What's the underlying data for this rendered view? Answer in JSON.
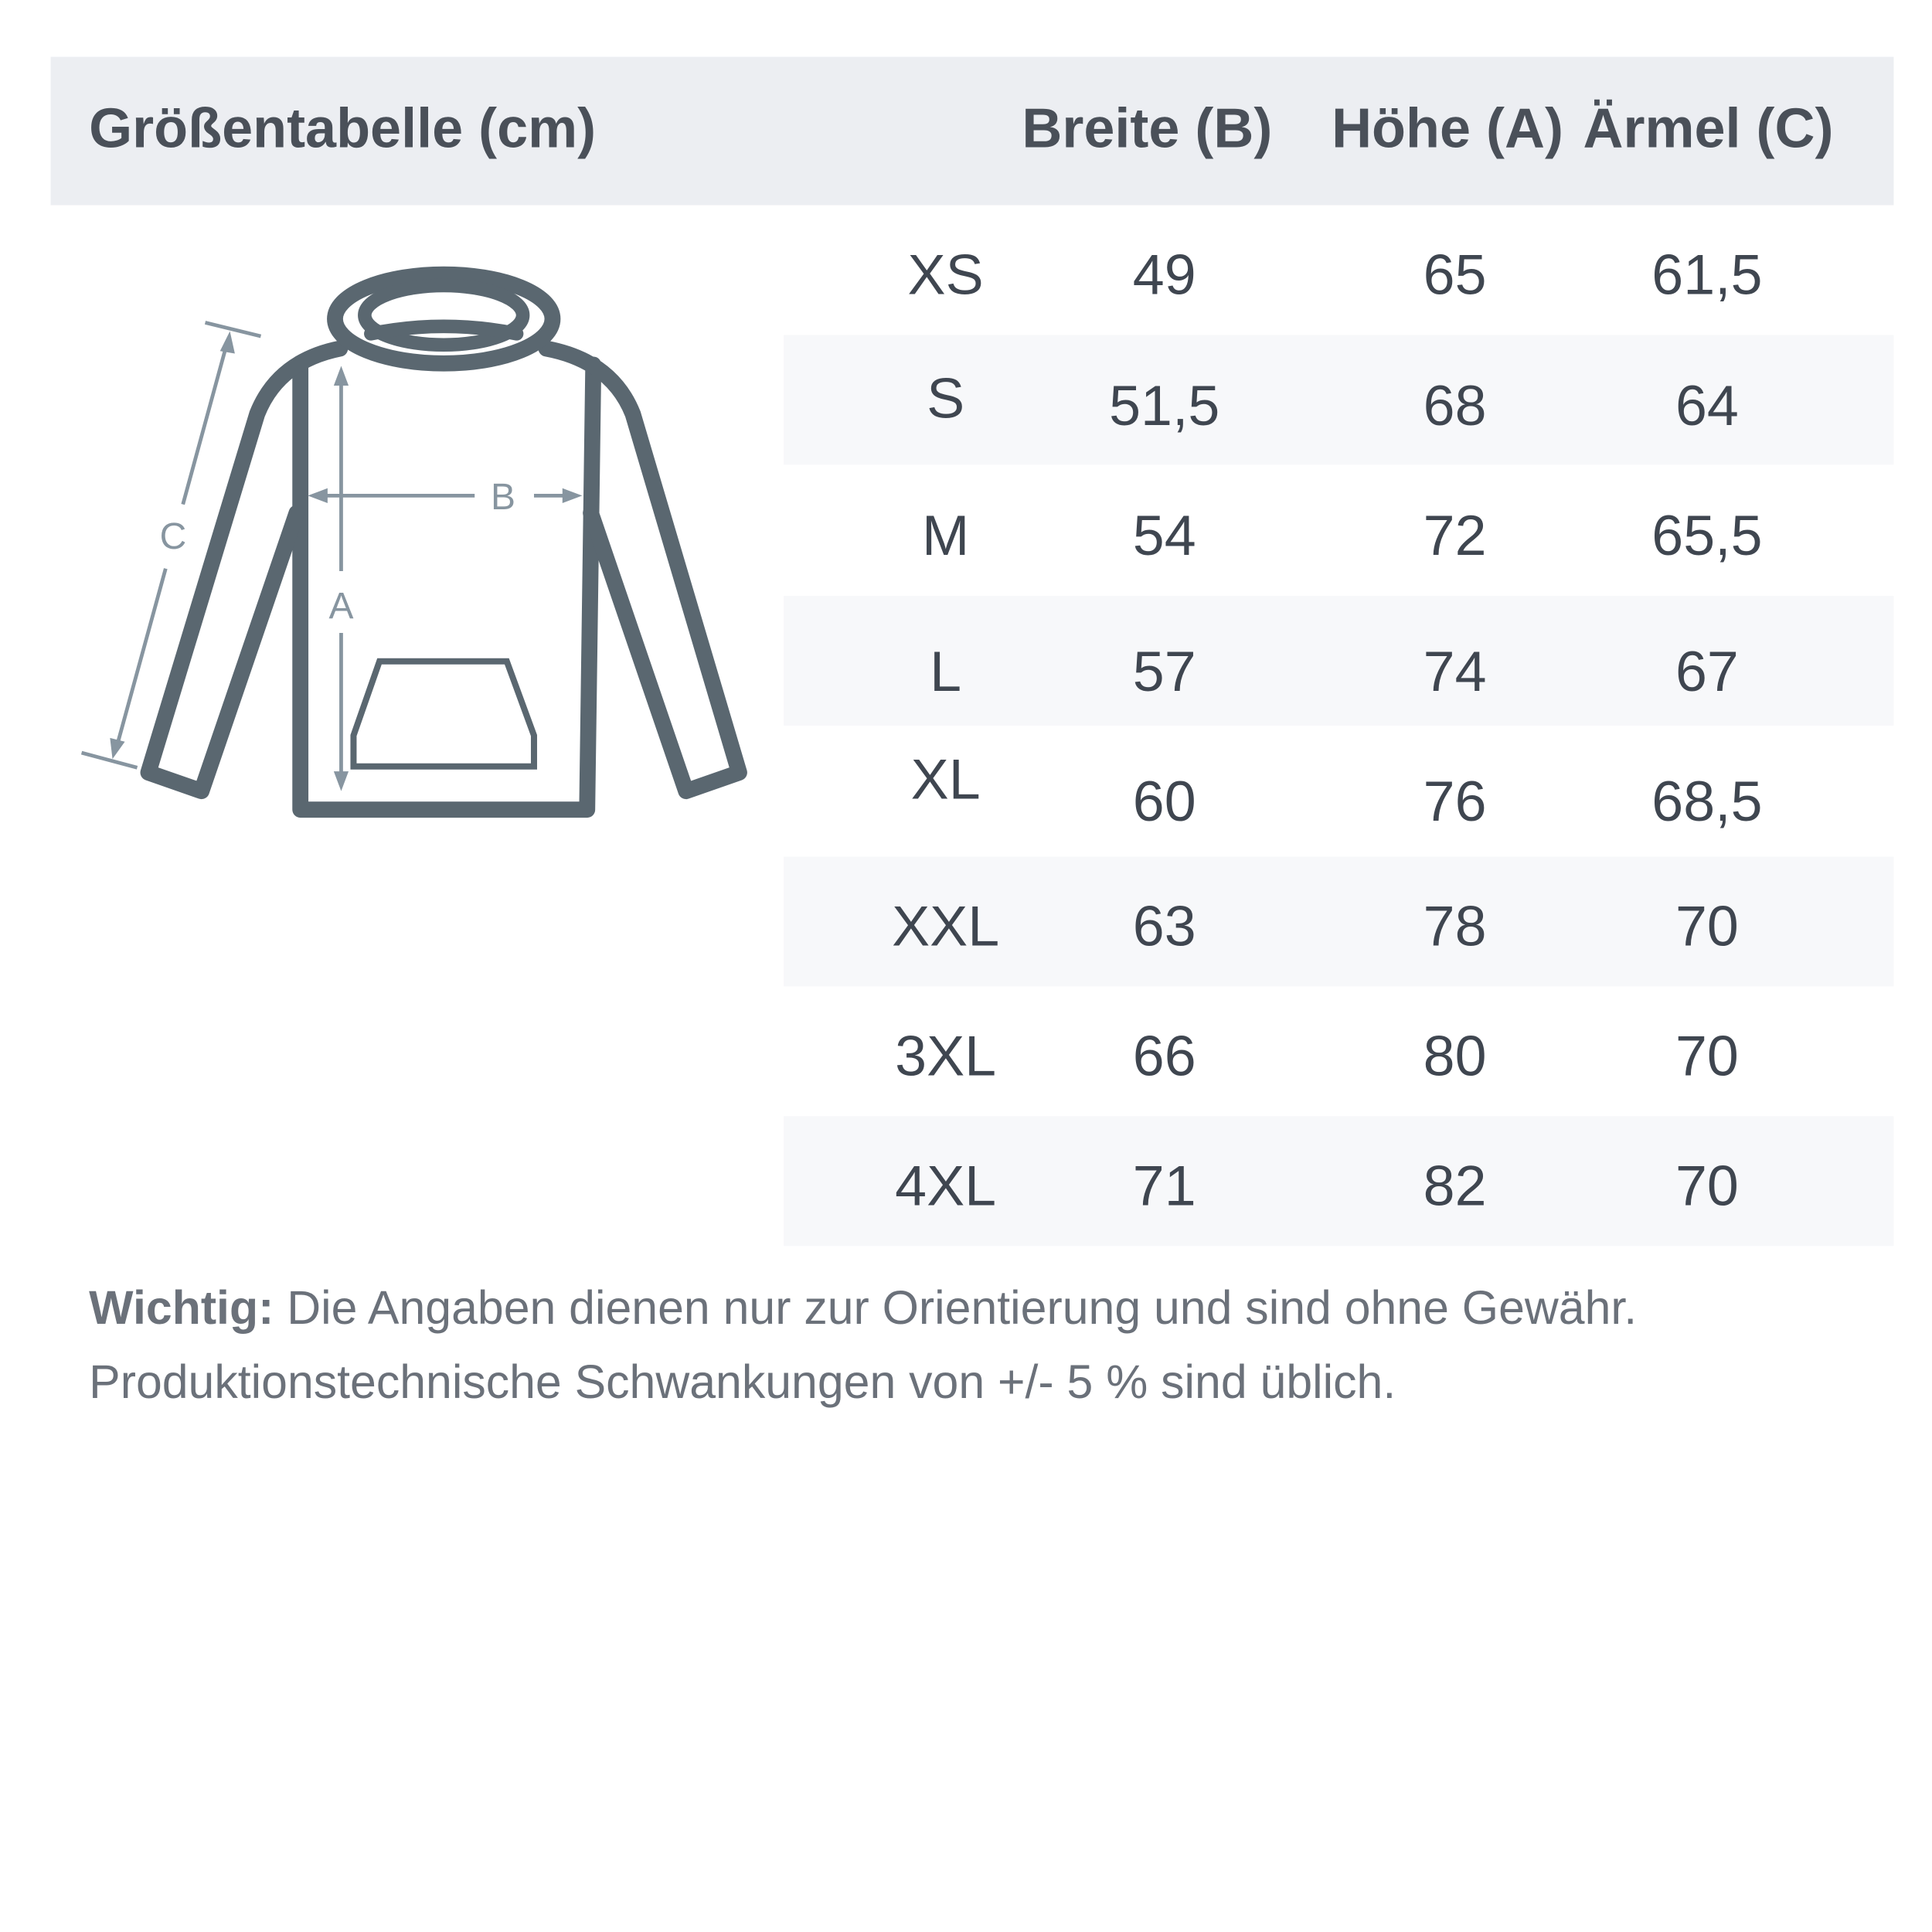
{
  "title": "Größentabelle (cm)",
  "columns": [
    "Breite (B)",
    "Höhe (A)",
    "Ärmel (C)"
  ],
  "rows": [
    {
      "size": "XS",
      "breite": "49",
      "hoehe": "65",
      "aermel": "61,5"
    },
    {
      "size": "S",
      "breite": "51,5",
      "hoehe": "68",
      "aermel": "64"
    },
    {
      "size": "M",
      "breite": "54",
      "hoehe": "72",
      "aermel": "65,5"
    },
    {
      "size": "L",
      "breite": "57",
      "hoehe": "74",
      "aermel": "67"
    },
    {
      "size": "XL",
      "breite": "60",
      "hoehe": "76",
      "aermel": "68,5"
    },
    {
      "size": "XXL",
      "breite": "63",
      "hoehe": "78",
      "aermel": "70"
    },
    {
      "size": "3XL",
      "breite": "66",
      "hoehe": "80",
      "aermel": "70"
    },
    {
      "size": "4XL",
      "breite": "71",
      "hoehe": "82",
      "aermel": "70"
    }
  ],
  "diagram": {
    "labels": {
      "a": "A",
      "b": "B",
      "c": "C"
    },
    "icon": "hoodie-measurement-diagram"
  },
  "note": {
    "bold": "Wichtig:",
    "line1": " Die Angaben dienen nur zur Orientierung und sind ohne Gewähr.",
    "line2": "Produktionstechnische Schwankungen von +/- 5 % sind üblich."
  },
  "colors": {
    "header_bg": "#eceef2",
    "row_shade": "#f7f8fa",
    "garment": "#5a6770",
    "measure": "#8795a0"
  }
}
